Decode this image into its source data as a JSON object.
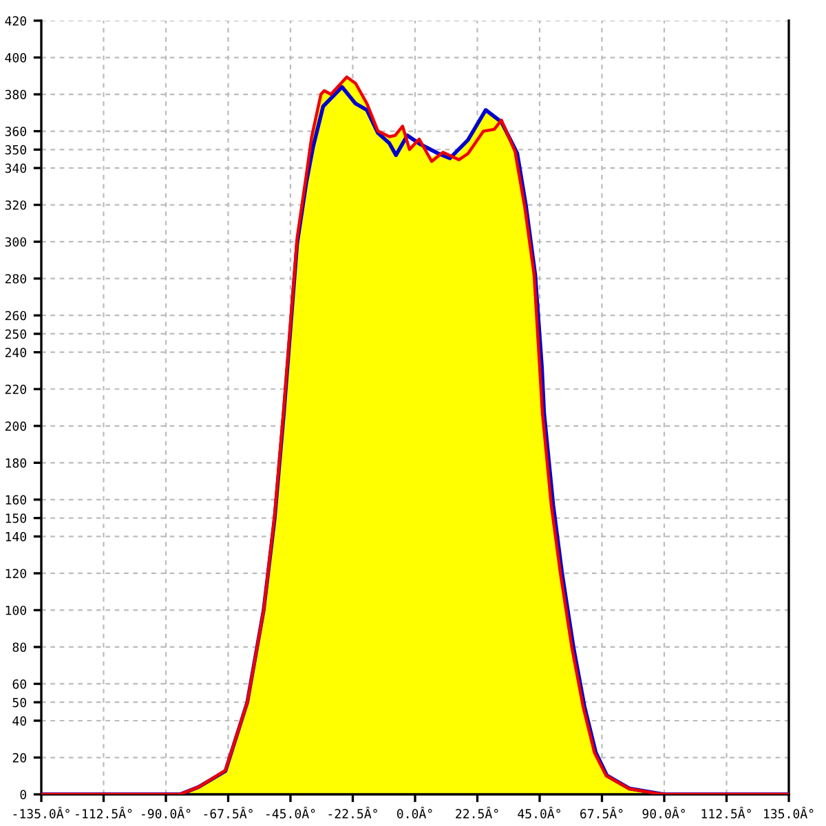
{
  "chart_data": {
    "type": "line",
    "xlim": [
      -135,
      135
    ],
    "xticks": [
      {
        "value": -135,
        "label": "-135.0Â°"
      },
      {
        "value": -112.5,
        "label": "-112.5Â°"
      },
      {
        "value": -90,
        "label": "-90.0Â°"
      },
      {
        "value": -67.5,
        "label": "-67.5Â°"
      },
      {
        "value": -45,
        "label": "-45.0Â°"
      },
      {
        "value": -22.5,
        "label": "-22.5Â°"
      },
      {
        "value": 0,
        "label": "0.0Â°"
      },
      {
        "value": 22.5,
        "label": "22.5Â°"
      },
      {
        "value": 45,
        "label": "45.0Â°"
      },
      {
        "value": 67.5,
        "label": "67.5Â°"
      },
      {
        "value": 90,
        "label": "90.0Â°"
      },
      {
        "value": 112.5,
        "label": "112.5Â°"
      },
      {
        "value": 135,
        "label": "135.0Â°"
      }
    ],
    "ylim": [
      0,
      420
    ],
    "yticks": [
      0,
      20,
      40,
      50,
      60,
      80,
      100,
      120,
      140,
      150,
      160,
      180,
      200,
      220,
      240,
      250,
      260,
      280,
      300,
      320,
      340,
      350,
      360,
      380,
      400,
      420
    ],
    "grid": true,
    "legend": false,
    "series": [
      {
        "type": "area",
        "color": "#ffff00",
        "x": [
          -84.9,
          -78.2,
          -68.5,
          -60.6,
          -54.7,
          -50.7,
          -47.4,
          -42.6,
          -39.3,
          -37.4,
          -34.0,
          -32.8,
          -30.4,
          -24.7,
          -21.5,
          -17.4,
          -13.4,
          -9.3,
          -7.2,
          -4.5,
          -2.8,
          -2.0,
          1.5,
          2.0,
          6.0,
          8.5,
          10.1,
          12.6,
          15.8,
          19.1,
          25.5,
          31.2,
          36.9,
          40.1,
          43.4,
          45.8,
          46.6,
          49.9,
          53.1,
          57.2,
          61.2,
          65.3,
          69.3,
          77.4,
          87.2,
          89.8
        ],
        "values": [
          0,
          4,
          13,
          50,
          100,
          152,
          210,
          302,
          336,
          356.5,
          380,
          382,
          380,
          389.4,
          386,
          375,
          360,
          357,
          357.7,
          362.7,
          357.7,
          352,
          355.7,
          352.8,
          346,
          347.8,
          348.5,
          346,
          348,
          355.2,
          371.5,
          366,
          348,
          319,
          282,
          232,
          207,
          157,
          120,
          80,
          47.6,
          22.6,
          10.2,
          3.2,
          0.7,
          0
        ]
      },
      {
        "color": "#0000cc",
        "x": [
          -135,
          -84.9,
          -78.2,
          -68.5,
          -60.6,
          -54.7,
          -50.7,
          -47.4,
          -42.6,
          -39.3,
          -36.9,
          -33.2,
          -26.4,
          -21.5,
          -17.4,
          -13.4,
          -9.3,
          -6.9,
          -2.8,
          2.0,
          8.5,
          12.6,
          19.1,
          25.5,
          31.2,
          36.9,
          40.1,
          43.4,
          45.8,
          46.6,
          49.9,
          53.1,
          57.2,
          61.2,
          65.3,
          69.3,
          77.4,
          87.2,
          89.8,
          135
        ],
        "values": [
          0,
          0,
          4,
          12.7,
          50,
          100,
          150,
          207,
          299,
          332,
          351,
          373.5,
          384,
          375,
          371.5,
          359,
          353.5,
          347,
          357.7,
          352.8,
          347.8,
          345.3,
          355.2,
          371.5,
          365,
          348,
          319,
          282,
          232,
          207,
          157,
          120,
          80,
          47.6,
          22.6,
          10.2,
          3.2,
          0.7,
          0,
          0
        ]
      },
      {
        "color": "#ee0000",
        "x": [
          -135,
          -84.9,
          -78.2,
          -68.5,
          -60.6,
          -54.7,
          -50.7,
          -47.4,
          -42.6,
          -39.3,
          -37.4,
          -34.0,
          -32.8,
          -30.4,
          -24.7,
          -21.5,
          -17.4,
          -13.4,
          -9.3,
          -7.2,
          -4.5,
          -2.0,
          1.5,
          6.0,
          10.1,
          15.8,
          19.1,
          24.7,
          28.6,
          31.2,
          36.1,
          39.6,
          43.0,
          45.0,
          46.0,
          49.2,
          52.5,
          56.6,
          60.7,
          64.8,
          69.0,
          77.4,
          87.2,
          89.8,
          135
        ],
        "values": [
          0,
          0,
          4,
          13,
          50,
          100,
          152,
          210,
          302,
          336,
          356.5,
          380,
          382,
          380,
          389.4,
          386,
          375,
          360,
          357,
          357.7,
          362.7,
          350,
          355.7,
          343.6,
          348.5,
          344.5,
          347.8,
          360,
          361,
          366,
          349,
          319,
          282,
          232,
          207,
          157,
          120,
          80,
          47.6,
          22.6,
          10.2,
          3,
          0.5,
          0,
          0
        ]
      }
    ]
  }
}
